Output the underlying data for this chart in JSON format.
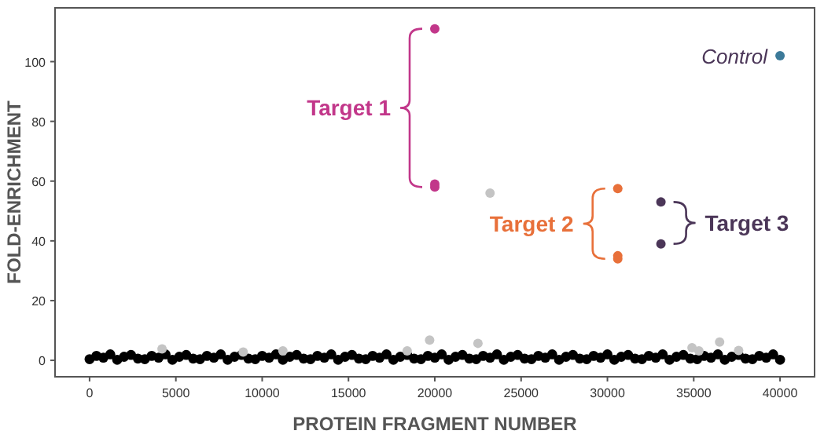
{
  "chart_data": {
    "type": "scatter",
    "xlabel": "PROTEIN FRAGMENT NUMBER",
    "ylabel": "FOLD-ENRICHMENT",
    "xlim": [
      -2000,
      42000
    ],
    "ylim": [
      -5.5,
      118
    ],
    "xticks": [
      0,
      5000,
      10000,
      15000,
      20000,
      25000,
      30000,
      35000,
      40000
    ],
    "yticks": [
      0,
      20,
      40,
      60,
      80,
      100
    ],
    "grid": false,
    "marker": "circle",
    "series": [
      {
        "color": "#000000",
        "x": [
          0,
          400,
          800,
          1200,
          1600,
          2000,
          2400,
          2800,
          3200,
          3600,
          4000,
          4400,
          4800,
          5200,
          5600,
          6000,
          6400,
          6800,
          7200,
          7600,
          8000,
          8400,
          8800,
          9200,
          9600,
          10000,
          10400,
          10800,
          11200,
          11600,
          12000,
          12400,
          12800,
          13200,
          13600,
          14000,
          14400,
          14800,
          15200,
          15600,
          16000,
          16400,
          16800,
          17200,
          17600,
          18000,
          18400,
          18800,
          19200,
          19600,
          20000,
          20400,
          20800,
          21200,
          21600,
          22000,
          22400,
          22800,
          23200,
          23600,
          24000,
          24400,
          24800,
          25200,
          25600,
          26000,
          26400,
          26800,
          27200,
          27600,
          28000,
          28400,
          28800,
          29200,
          29600,
          30000,
          30400,
          30800,
          31200,
          31600,
          32000,
          32400,
          32800,
          33200,
          33600,
          34000,
          34400,
          34800,
          35200,
          35600,
          36000,
          36400,
          36800,
          37200,
          37600,
          38000,
          38400,
          38800,
          39200,
          39600,
          40000
        ],
        "values": [
          0.4,
          1.5,
          0.9,
          2.0,
          0.2,
          1.2,
          1.8,
          0.6,
          0.4,
          1.5,
          0.9,
          2.0,
          0.2,
          1.2,
          1.8,
          0.6,
          0.4,
          1.5,
          0.9,
          2.0,
          0.2,
          1.2,
          1.8,
          0.6,
          0.4,
          1.5,
          0.9,
          2.0,
          0.2,
          1.2,
          1.8,
          0.6,
          0.4,
          1.5,
          0.9,
          2.0,
          0.2,
          1.2,
          1.8,
          0.6,
          0.4,
          1.5,
          0.9,
          2.0,
          0.2,
          1.2,
          1.8,
          0.6,
          0.4,
          1.5,
          0.9,
          2.0,
          0.2,
          1.2,
          1.8,
          0.6,
          0.4,
          1.5,
          0.9,
          2.0,
          0.2,
          1.2,
          1.8,
          0.6,
          0.4,
          1.5,
          0.9,
          2.0,
          0.2,
          1.2,
          1.8,
          0.6,
          0.4,
          1.5,
          0.9,
          2.0,
          0.2,
          1.2,
          1.8,
          0.6,
          0.4,
          1.5,
          0.9,
          2.0,
          0.2,
          1.2,
          1.8,
          0.6,
          0.4,
          1.5,
          0.9,
          2.0,
          0.2,
          1.2,
          1.8,
          0.6,
          0.4,
          1.5,
          0.9,
          2.0,
          0.2
        ]
      },
      {
        "color": "#c4c4c4",
        "x": [
          4200,
          8900,
          11200,
          18400,
          19700,
          22500,
          23200,
          34900,
          35300,
          36500,
          37600
        ],
        "values": [
          3.8,
          2.8,
          3.2,
          3.2,
          6.8,
          5.7,
          56,
          4.2,
          3.2,
          6.1,
          3.3
        ]
      },
      {
        "color": "#c2378a",
        "x": [
          20000,
          20000,
          20000
        ],
        "values": [
          111,
          59,
          58
        ]
      },
      {
        "color": "#e8703a",
        "x": [
          30600,
          30600,
          30600
        ],
        "values": [
          57.5,
          35,
          34
        ]
      },
      {
        "color": "#4b3658",
        "x": [
          33100,
          33100
        ],
        "values": [
          53,
          39
        ]
      },
      {
        "color": "#3c7a99",
        "x": [
          40000
        ],
        "values": [
          102
        ]
      }
    ],
    "annotations": [
      "Target 1",
      "Target 2",
      "Target 3",
      "Control"
    ]
  }
}
